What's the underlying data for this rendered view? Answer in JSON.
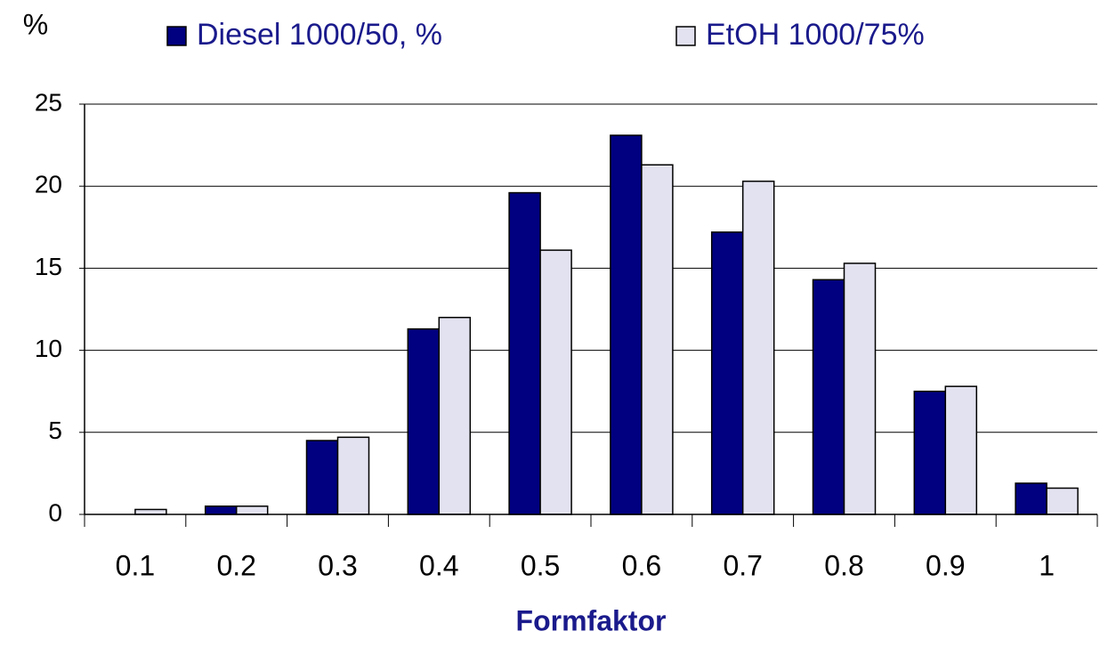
{
  "chart_data": {
    "type": "bar",
    "y_label": "%",
    "x_label": "Formfaktor",
    "categories": [
      "0.1",
      "0.2",
      "0.3",
      "0.4",
      "0.5",
      "0.6",
      "0.7",
      "0.8",
      "0.9",
      "1"
    ],
    "series": [
      {
        "name": "Diesel 1000/50, %",
        "color": "#000080",
        "values": [
          0,
          0.5,
          4.5,
          11.3,
          19.6,
          23.1,
          17.2,
          14.3,
          7.5,
          1.9
        ]
      },
      {
        "name": "EtOH 1000/75%",
        "color": "#e2e2f0",
        "values": [
          0.3,
          0.5,
          4.7,
          12.0,
          16.1,
          21.3,
          20.3,
          15.3,
          7.8,
          1.6
        ]
      }
    ],
    "ylim": [
      0,
      25
    ],
    "yticks": [
      0,
      5,
      10,
      15,
      20,
      25
    ],
    "grid": true
  }
}
